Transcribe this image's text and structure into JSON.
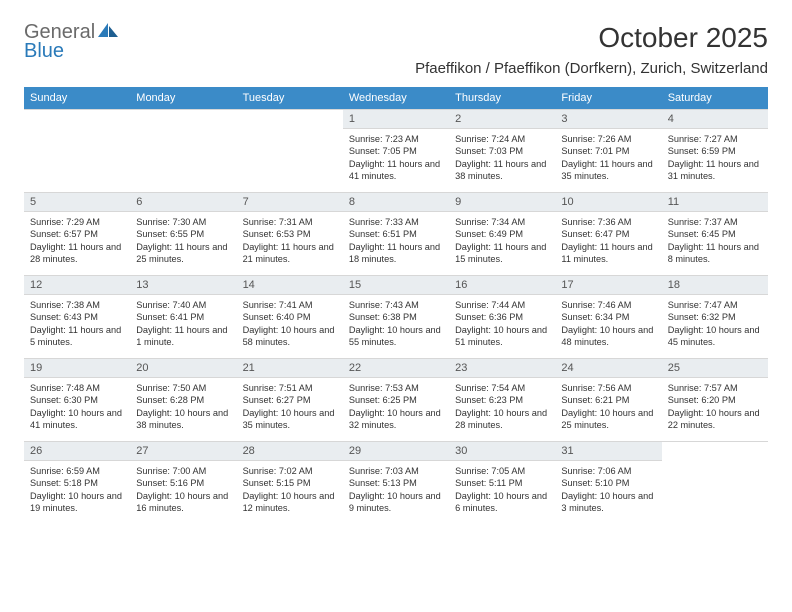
{
  "brand": {
    "part1": "General",
    "part2": "Blue"
  },
  "colors": {
    "header_bg": "#3b8bc8",
    "header_text": "#ffffff",
    "daynum_bg": "#e9edf0",
    "border": "#d7d7d7",
    "text": "#333333",
    "logo_gray": "#6a6a6a",
    "logo_blue": "#2a7ab9"
  },
  "title": {
    "month": "October 2025",
    "location": "Pfaeffikon / Pfaeffikon (Dorfkern), Zurich, Switzerland"
  },
  "day_labels": [
    "Sunday",
    "Monday",
    "Tuesday",
    "Wednesday",
    "Thursday",
    "Friday",
    "Saturday"
  ],
  "weeks": [
    [
      {
        "n": "",
        "lines": []
      },
      {
        "n": "",
        "lines": []
      },
      {
        "n": "",
        "lines": []
      },
      {
        "n": "1",
        "lines": [
          "Sunrise: 7:23 AM",
          "Sunset: 7:05 PM",
          "Daylight: 11 hours and 41 minutes."
        ]
      },
      {
        "n": "2",
        "lines": [
          "Sunrise: 7:24 AM",
          "Sunset: 7:03 PM",
          "Daylight: 11 hours and 38 minutes."
        ]
      },
      {
        "n": "3",
        "lines": [
          "Sunrise: 7:26 AM",
          "Sunset: 7:01 PM",
          "Daylight: 11 hours and 35 minutes."
        ]
      },
      {
        "n": "4",
        "lines": [
          "Sunrise: 7:27 AM",
          "Sunset: 6:59 PM",
          "Daylight: 11 hours and 31 minutes."
        ]
      }
    ],
    [
      {
        "n": "5",
        "lines": [
          "Sunrise: 7:29 AM",
          "Sunset: 6:57 PM",
          "Daylight: 11 hours and 28 minutes."
        ]
      },
      {
        "n": "6",
        "lines": [
          "Sunrise: 7:30 AM",
          "Sunset: 6:55 PM",
          "Daylight: 11 hours and 25 minutes."
        ]
      },
      {
        "n": "7",
        "lines": [
          "Sunrise: 7:31 AM",
          "Sunset: 6:53 PM",
          "Daylight: 11 hours and 21 minutes."
        ]
      },
      {
        "n": "8",
        "lines": [
          "Sunrise: 7:33 AM",
          "Sunset: 6:51 PM",
          "Daylight: 11 hours and 18 minutes."
        ]
      },
      {
        "n": "9",
        "lines": [
          "Sunrise: 7:34 AM",
          "Sunset: 6:49 PM",
          "Daylight: 11 hours and 15 minutes."
        ]
      },
      {
        "n": "10",
        "lines": [
          "Sunrise: 7:36 AM",
          "Sunset: 6:47 PM",
          "Daylight: 11 hours and 11 minutes."
        ]
      },
      {
        "n": "11",
        "lines": [
          "Sunrise: 7:37 AM",
          "Sunset: 6:45 PM",
          "Daylight: 11 hours and 8 minutes."
        ]
      }
    ],
    [
      {
        "n": "12",
        "lines": [
          "Sunrise: 7:38 AM",
          "Sunset: 6:43 PM",
          "Daylight: 11 hours and 5 minutes."
        ]
      },
      {
        "n": "13",
        "lines": [
          "Sunrise: 7:40 AM",
          "Sunset: 6:41 PM",
          "Daylight: 11 hours and 1 minute."
        ]
      },
      {
        "n": "14",
        "lines": [
          "Sunrise: 7:41 AM",
          "Sunset: 6:40 PM",
          "Daylight: 10 hours and 58 minutes."
        ]
      },
      {
        "n": "15",
        "lines": [
          "Sunrise: 7:43 AM",
          "Sunset: 6:38 PM",
          "Daylight: 10 hours and 55 minutes."
        ]
      },
      {
        "n": "16",
        "lines": [
          "Sunrise: 7:44 AM",
          "Sunset: 6:36 PM",
          "Daylight: 10 hours and 51 minutes."
        ]
      },
      {
        "n": "17",
        "lines": [
          "Sunrise: 7:46 AM",
          "Sunset: 6:34 PM",
          "Daylight: 10 hours and 48 minutes."
        ]
      },
      {
        "n": "18",
        "lines": [
          "Sunrise: 7:47 AM",
          "Sunset: 6:32 PM",
          "Daylight: 10 hours and 45 minutes."
        ]
      }
    ],
    [
      {
        "n": "19",
        "lines": [
          "Sunrise: 7:48 AM",
          "Sunset: 6:30 PM",
          "Daylight: 10 hours and 41 minutes."
        ]
      },
      {
        "n": "20",
        "lines": [
          "Sunrise: 7:50 AM",
          "Sunset: 6:28 PM",
          "Daylight: 10 hours and 38 minutes."
        ]
      },
      {
        "n": "21",
        "lines": [
          "Sunrise: 7:51 AM",
          "Sunset: 6:27 PM",
          "Daylight: 10 hours and 35 minutes."
        ]
      },
      {
        "n": "22",
        "lines": [
          "Sunrise: 7:53 AM",
          "Sunset: 6:25 PM",
          "Daylight: 10 hours and 32 minutes."
        ]
      },
      {
        "n": "23",
        "lines": [
          "Sunrise: 7:54 AM",
          "Sunset: 6:23 PM",
          "Daylight: 10 hours and 28 minutes."
        ]
      },
      {
        "n": "24",
        "lines": [
          "Sunrise: 7:56 AM",
          "Sunset: 6:21 PM",
          "Daylight: 10 hours and 25 minutes."
        ]
      },
      {
        "n": "25",
        "lines": [
          "Sunrise: 7:57 AM",
          "Sunset: 6:20 PM",
          "Daylight: 10 hours and 22 minutes."
        ]
      }
    ],
    [
      {
        "n": "26",
        "lines": [
          "Sunrise: 6:59 AM",
          "Sunset: 5:18 PM",
          "Daylight: 10 hours and 19 minutes."
        ]
      },
      {
        "n": "27",
        "lines": [
          "Sunrise: 7:00 AM",
          "Sunset: 5:16 PM",
          "Daylight: 10 hours and 16 minutes."
        ]
      },
      {
        "n": "28",
        "lines": [
          "Sunrise: 7:02 AM",
          "Sunset: 5:15 PM",
          "Daylight: 10 hours and 12 minutes."
        ]
      },
      {
        "n": "29",
        "lines": [
          "Sunrise: 7:03 AM",
          "Sunset: 5:13 PM",
          "Daylight: 10 hours and 9 minutes."
        ]
      },
      {
        "n": "30",
        "lines": [
          "Sunrise: 7:05 AM",
          "Sunset: 5:11 PM",
          "Daylight: 10 hours and 6 minutes."
        ]
      },
      {
        "n": "31",
        "lines": [
          "Sunrise: 7:06 AM",
          "Sunset: 5:10 PM",
          "Daylight: 10 hours and 3 minutes."
        ]
      },
      {
        "n": "",
        "lines": []
      }
    ]
  ]
}
